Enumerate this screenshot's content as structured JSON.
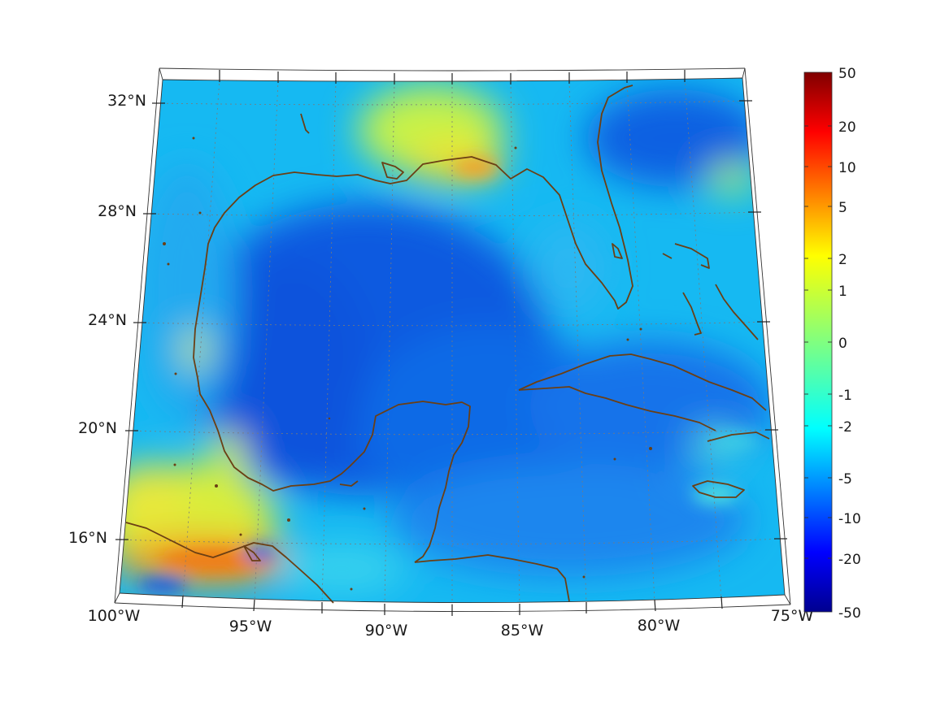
{
  "map": {
    "projection": "conic",
    "longitude_range": [
      -100,
      -75
    ],
    "latitude_range": [
      14,
      33
    ],
    "lon_labels": [
      "100°W",
      "95°W",
      "90°W",
      "85°W",
      "80°W",
      "75°W"
    ],
    "lat_labels": [
      "16°N",
      "20°N",
      "24°N",
      "28°N",
      "32°N"
    ],
    "coastline_color": "#6b3f14",
    "grid_color": "#7a7a7a"
  },
  "colorbar": {
    "colormap": "jet",
    "tick_labels": [
      "50",
      "20",
      "10",
      "5",
      "2",
      "1",
      "0",
      "-1",
      "-2",
      "-5",
      "-10",
      "-20",
      "-50"
    ],
    "min": -50,
    "max": 50
  },
  "colors": {
    "jet_low": "#00008f",
    "jet_mid": "#80ff80",
    "jet_high": "#800000",
    "field_dominant": "#1a6fe8",
    "field_shelf": "#2ab4f0"
  }
}
